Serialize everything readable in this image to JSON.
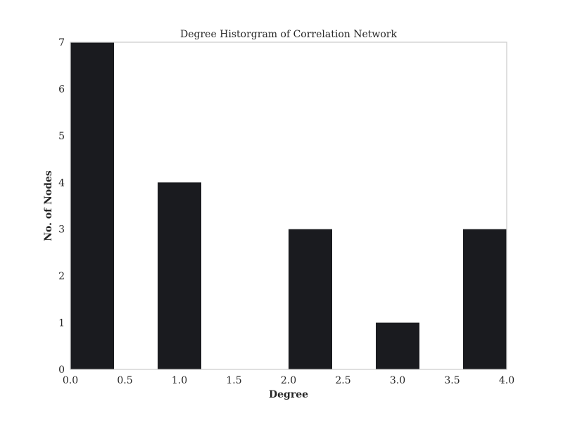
{
  "chart_data": {
    "type": "bar",
    "title": "Degree Historgram of Correlation Network",
    "xlabel": "Degree",
    "ylabel": "No. of Nodes",
    "bins": [
      {
        "x0": 0.0,
        "x1": 0.4,
        "count": 7
      },
      {
        "x0": 0.8,
        "x1": 1.2,
        "count": 4
      },
      {
        "x0": 2.0,
        "x1": 2.4,
        "count": 3
      },
      {
        "x0": 2.8,
        "x1": 3.2,
        "count": 1
      },
      {
        "x0": 3.6,
        "x1": 4.0,
        "count": 3
      }
    ],
    "xlim": [
      0.0,
      4.0
    ],
    "ylim": [
      0,
      7
    ],
    "xticks": [
      "0.0",
      "0.5",
      "1.0",
      "1.5",
      "2.0",
      "2.5",
      "3.0",
      "3.5",
      "4.0"
    ],
    "yticks": [
      "0",
      "1",
      "2",
      "3",
      "4",
      "5",
      "6",
      "7"
    ],
    "bar_color": "#1a1b1f",
    "frame_color": "#cccccc",
    "grid": false,
    "legend": "none"
  }
}
